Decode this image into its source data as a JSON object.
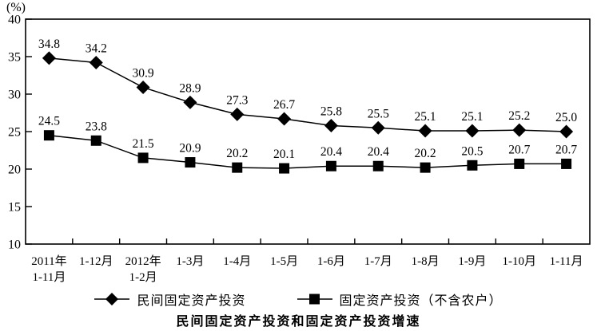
{
  "percent_label": "(%)",
  "title": "民间固定资产投资和固定资产投资增速",
  "legend": {
    "items": [
      {
        "label": "民间固定资产投资",
        "marker": "diamond"
      },
      {
        "label": "固定资产投资（不含农户）",
        "marker": "square"
      }
    ]
  },
  "chart_data": {
    "type": "line",
    "categories": [
      [
        "2011年",
        "1-11月"
      ],
      [
        "1-12月"
      ],
      [
        "2012年",
        "1-2月"
      ],
      [
        "1-3月"
      ],
      [
        "1-4月"
      ],
      [
        "1-5月"
      ],
      [
        "1-6月"
      ],
      [
        "1-7月"
      ],
      [
        "1-8月"
      ],
      [
        "1-9月"
      ],
      [
        "1-10月"
      ],
      [
        "1-11月"
      ]
    ],
    "series": [
      {
        "name": "民间固定资产投资",
        "marker": "diamond",
        "values": [
          34.8,
          34.2,
          30.9,
          28.9,
          27.3,
          26.7,
          25.8,
          25.5,
          25.1,
          25.1,
          25.2,
          25.0
        ]
      },
      {
        "name": "固定资产投资（不含农户）",
        "marker": "square",
        "values": [
          24.5,
          23.8,
          21.5,
          20.9,
          20.2,
          20.1,
          20.4,
          20.4,
          20.2,
          20.5,
          20.7,
          20.7
        ]
      }
    ],
    "ylabel": "(%)",
    "ylim": [
      10,
      40
    ],
    "yticks": [
      10,
      15,
      20,
      25,
      30,
      35,
      40
    ],
    "grid": false,
    "legend_position": "bottom",
    "line_color": "#000000",
    "marker_color": "#000000",
    "data_labels": true
  }
}
